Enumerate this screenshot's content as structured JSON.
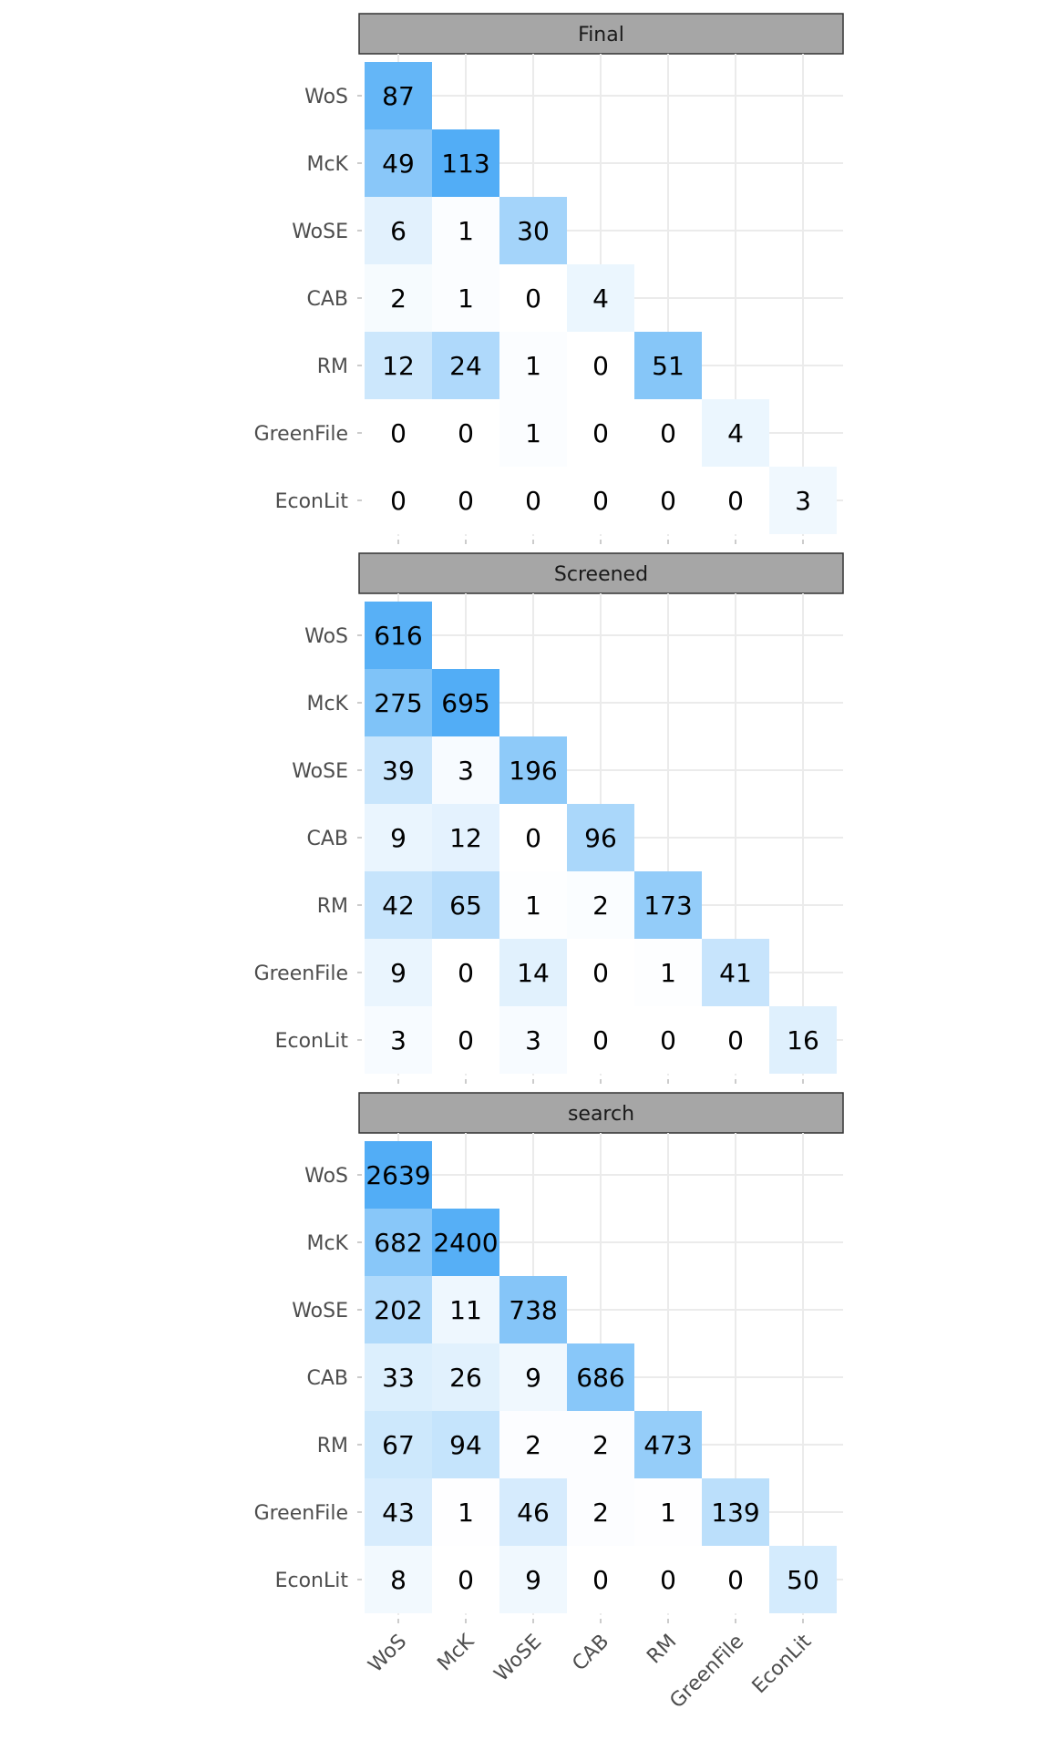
{
  "chart_data": {
    "type": "heatmap",
    "layout": "faceted-lower-triangle",
    "categories": [
      "WoS",
      "McK",
      "WoSE",
      "CAB",
      "RM",
      "GreenFile",
      "EconLit"
    ],
    "facets": [
      {
        "name": "Final",
        "matrix": [
          [
            87
          ],
          [
            49,
            113
          ],
          [
            6,
            1,
            30
          ],
          [
            2,
            1,
            0,
            4
          ],
          [
            12,
            24,
            1,
            0,
            51
          ],
          [
            0,
            0,
            1,
            0,
            0,
            4
          ],
          [
            0,
            0,
            0,
            0,
            0,
            0,
            3
          ]
        ]
      },
      {
        "name": "Screened",
        "matrix": [
          [
            616
          ],
          [
            275,
            695
          ],
          [
            39,
            3,
            196
          ],
          [
            9,
            12,
            0,
            96
          ],
          [
            42,
            65,
            1,
            2,
            173
          ],
          [
            9,
            0,
            14,
            0,
            1,
            41
          ],
          [
            3,
            0,
            3,
            0,
            0,
            0,
            16
          ]
        ]
      },
      {
        "name": "search",
        "matrix": [
          [
            2639
          ],
          [
            682,
            2400
          ],
          [
            202,
            11,
            738
          ],
          [
            33,
            26,
            9,
            686
          ],
          [
            67,
            94,
            2,
            2,
            473
          ],
          [
            43,
            1,
            46,
            2,
            1,
            139
          ],
          [
            8,
            0,
            9,
            0,
            0,
            0,
            50
          ]
        ]
      }
    ],
    "fill_low": "#ffffff",
    "fill_high": "#2196f3",
    "strip_fill": "#a6a6a6",
    "grid": true,
    "legend": "none"
  }
}
